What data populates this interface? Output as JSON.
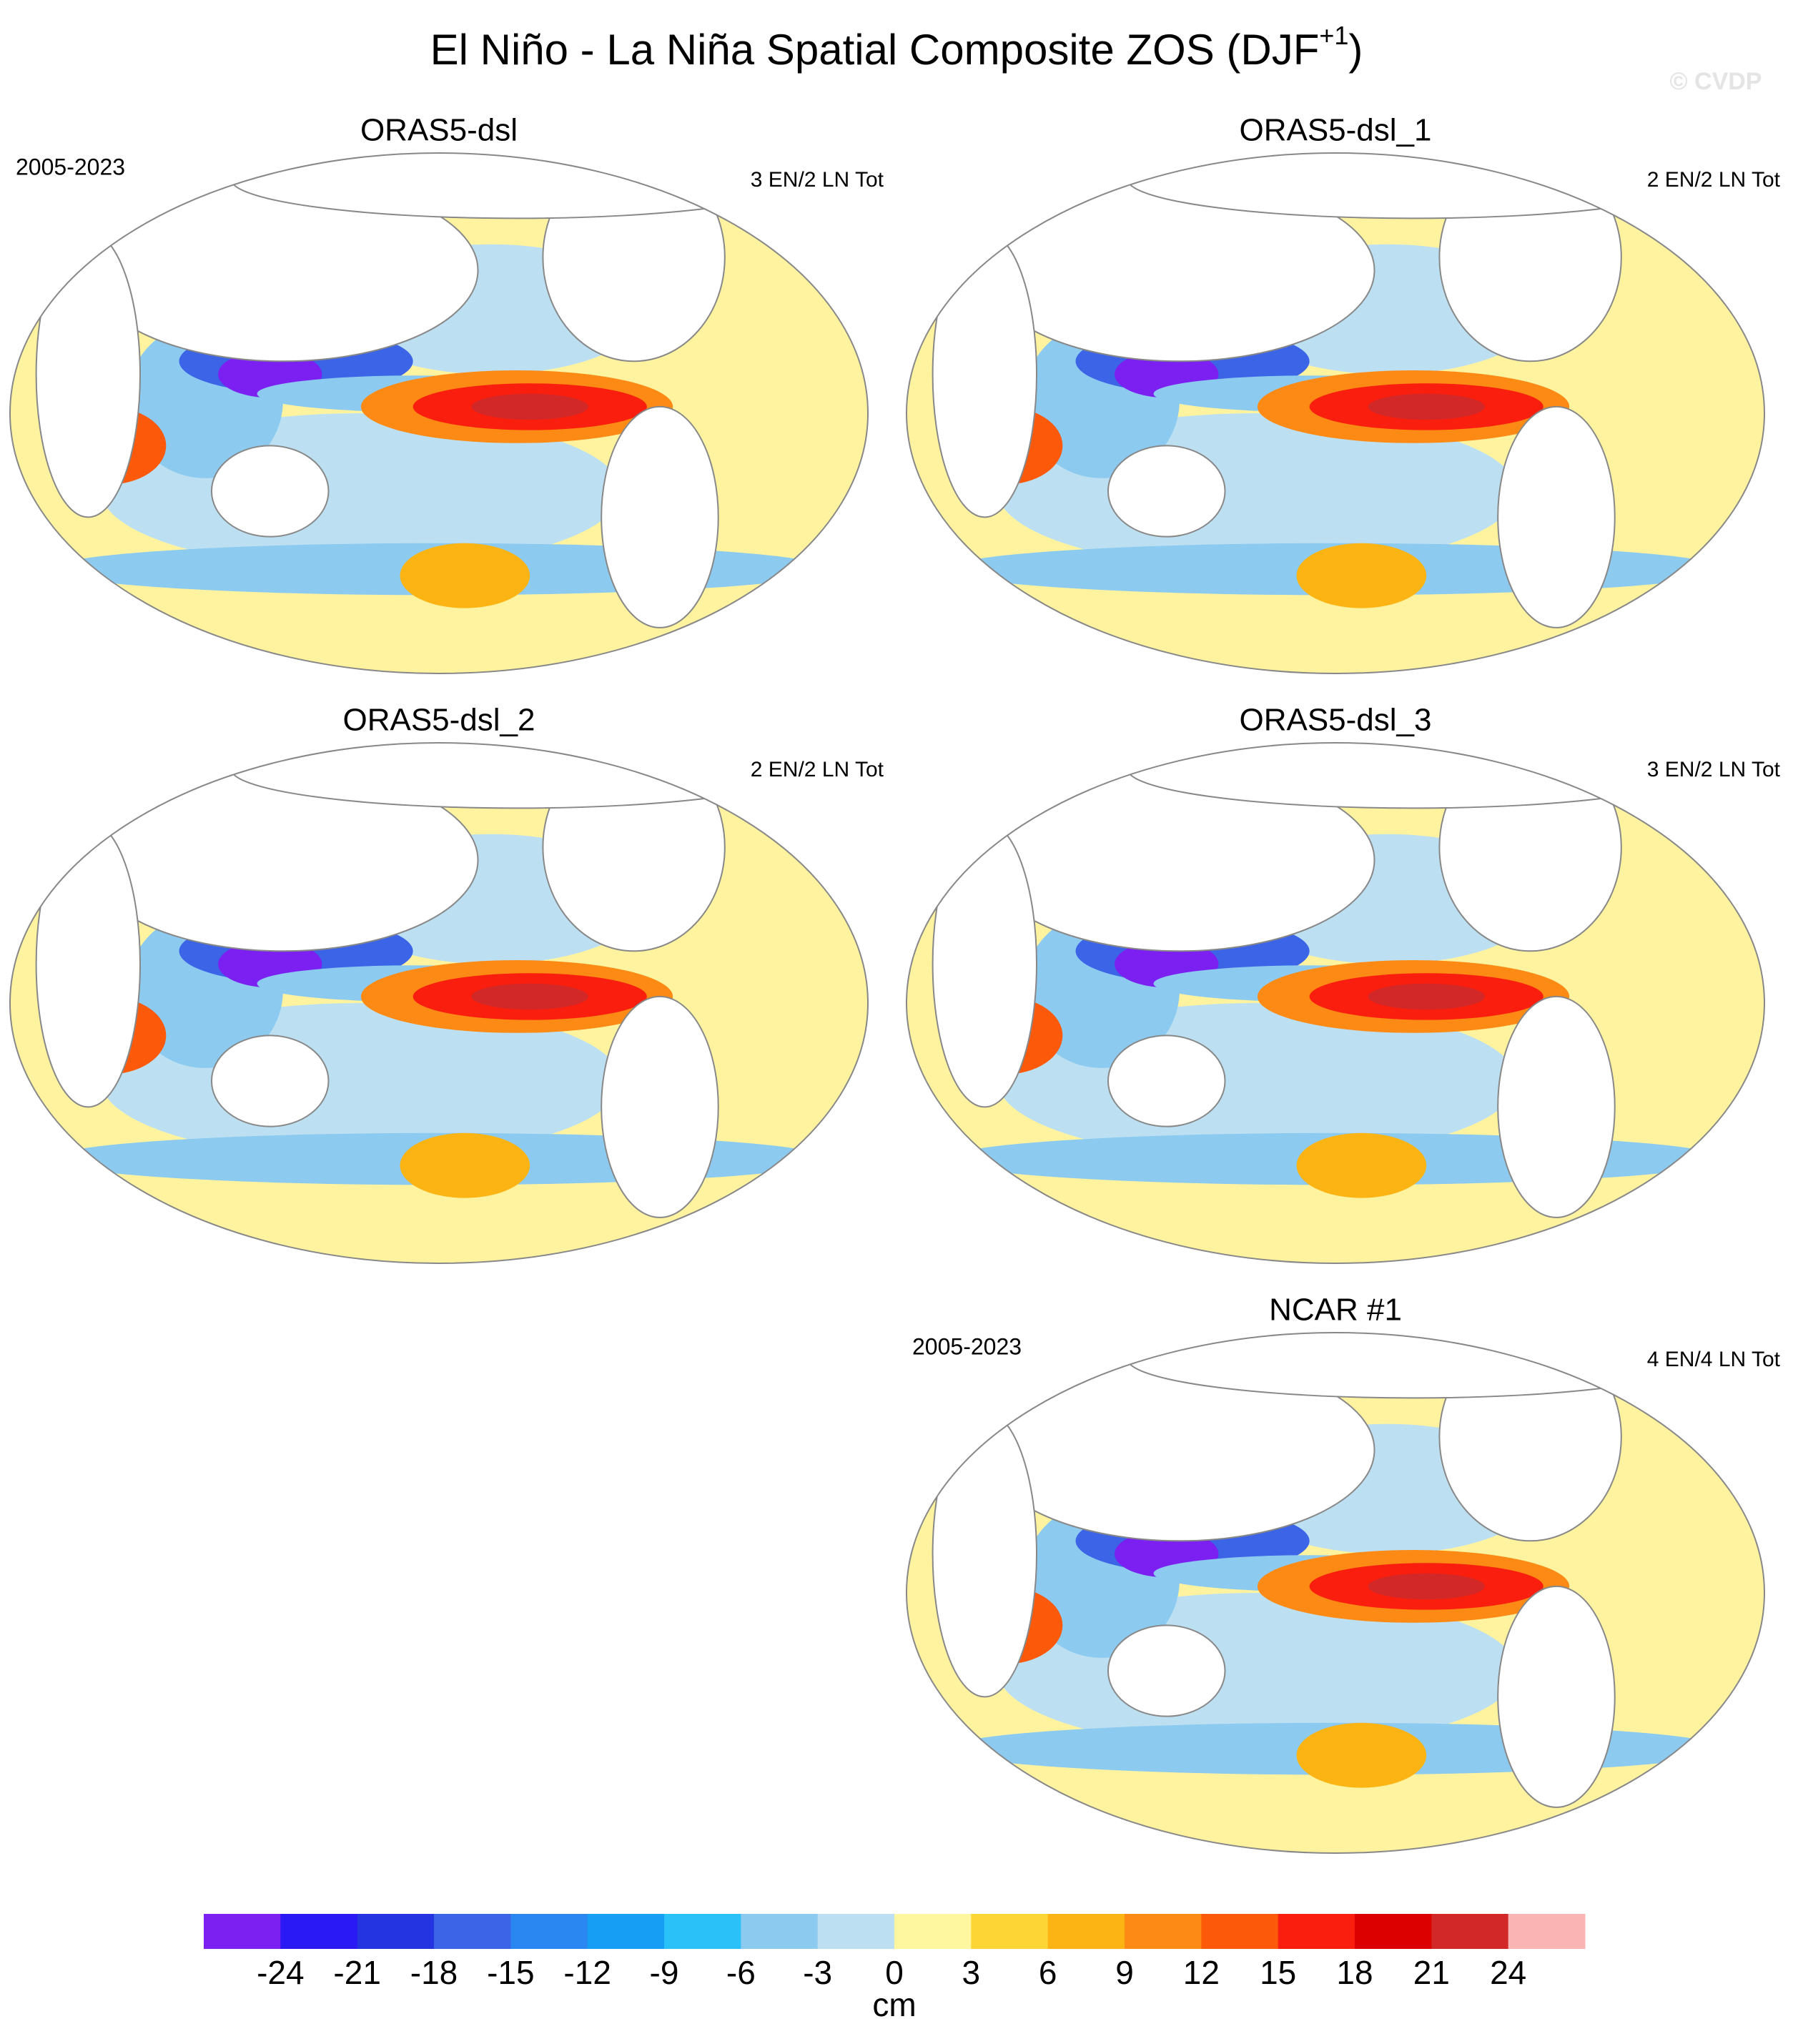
{
  "title": {
    "text": "El Niño - La Niña Spatial Composite ZOS (DJF",
    "superscript": "+1",
    "suffix": ")"
  },
  "watermark": "© CVDP",
  "panels": [
    {
      "title": "ORAS5-dsl",
      "period": "2005-2023",
      "count": "3 EN/2 LN Tot"
    },
    {
      "title": "ORAS5-dsl_1",
      "count": "2 EN/2 LN Tot"
    },
    {
      "title": "ORAS5-dsl_2",
      "count": "2 EN/2 LN Tot"
    },
    {
      "title": "ORAS5-dsl_3",
      "count": "3 EN/2 LN Tot"
    },
    {
      "title": "NCAR #1",
      "period": "2005-2023",
      "count": "4 EN/4 LN Tot"
    }
  ],
  "colorbar": {
    "label": "cm",
    "levels": [
      -24,
      -21,
      -18,
      -15,
      -12,
      -9,
      -6,
      -3,
      0,
      3,
      6,
      9,
      12,
      15,
      18,
      21,
      24
    ],
    "colors": [
      "#7b20f0",
      "#2a18f5",
      "#2434e0",
      "#3c64e6",
      "#2a86f0",
      "#169ef5",
      "#2ac0f8",
      "#8ccaf0",
      "#bce0f2",
      "#fff7a0",
      "#fdd535",
      "#fcb414",
      "#fc8a14",
      "#fc5a0a",
      "#fa1e0e",
      "#dc0000",
      "#d22828",
      "#fab4b4"
    ]
  }
}
